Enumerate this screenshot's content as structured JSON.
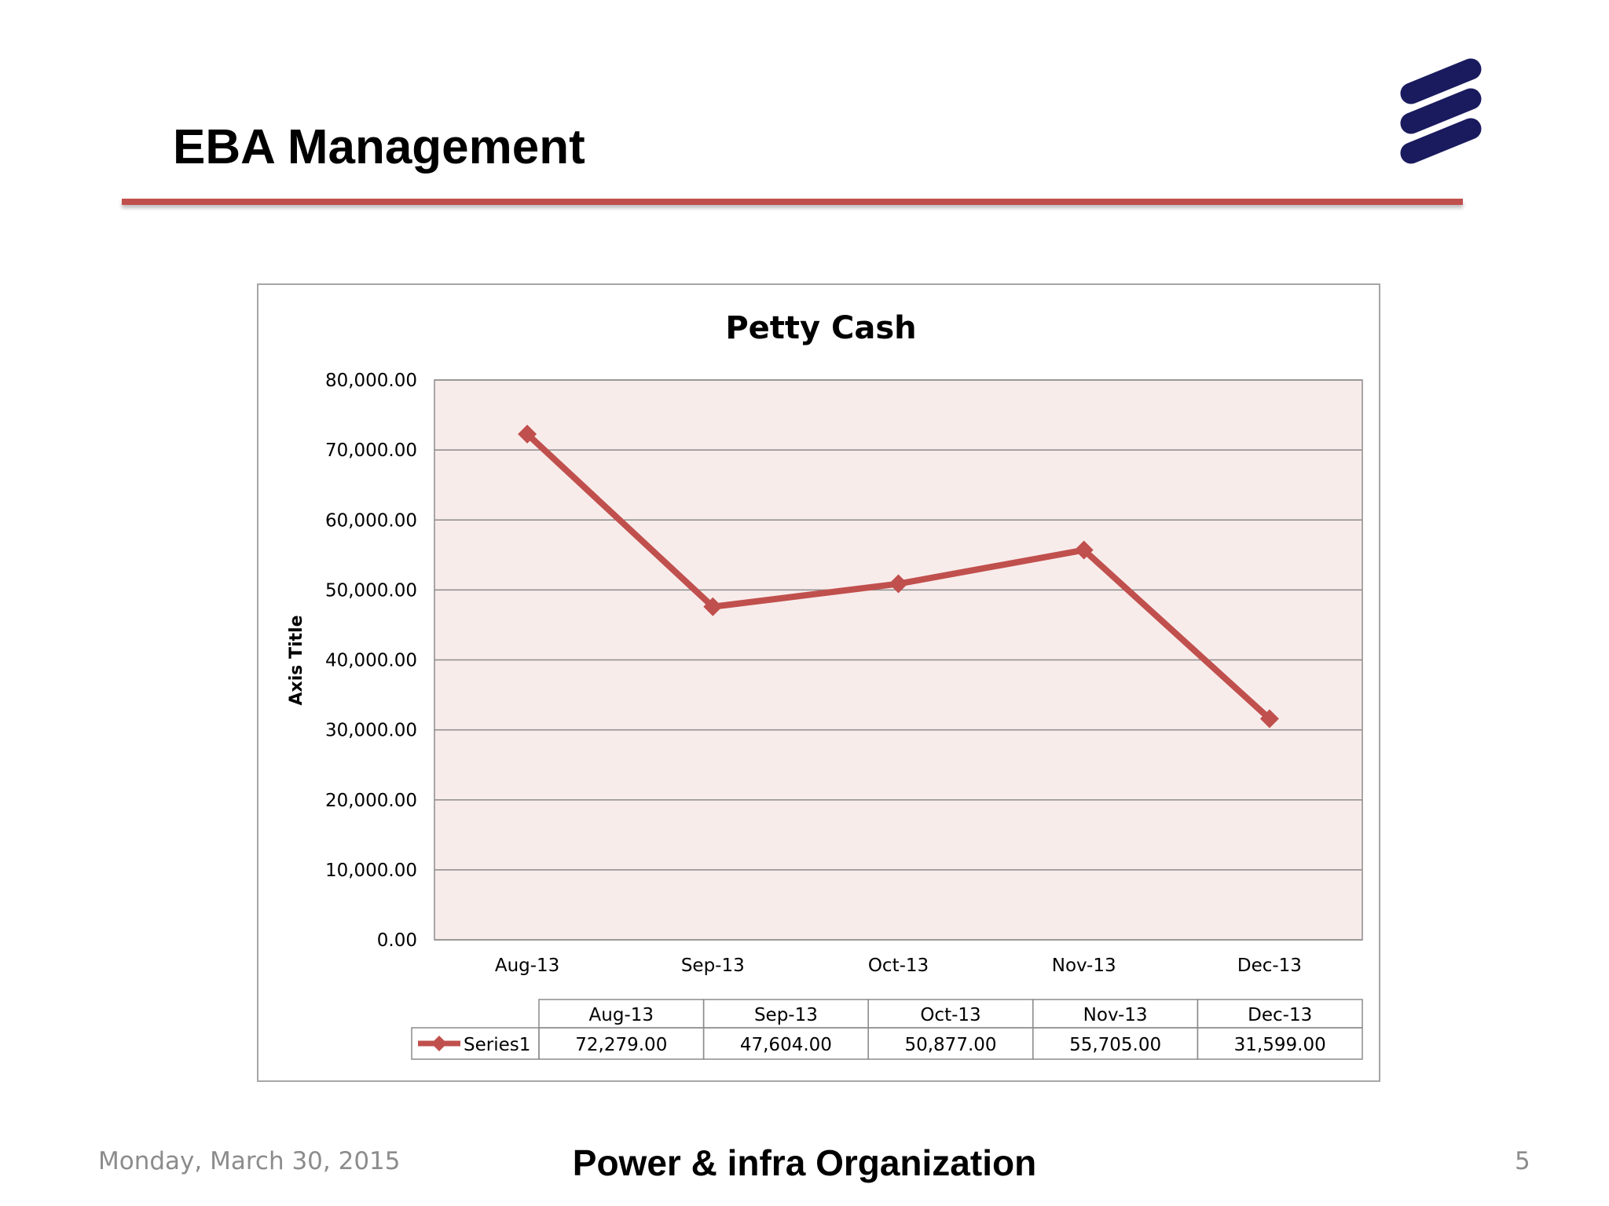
{
  "slide": {
    "title": "EBA Management",
    "footer_date": "Monday, March 30, 2015",
    "footer_center": "Power & infra Organization",
    "page_number": "5",
    "logo_icon": "ericsson-logo-icon"
  },
  "colors": {
    "accent_red": "#c0504d",
    "plot_bg": "#f2dcdb",
    "logo_navy": "#1a1a5e",
    "grid": "#8c8c8c"
  },
  "chart_data": {
    "type": "line",
    "title": "Petty Cash",
    "ylabel": "Axis Title",
    "xlabel": "",
    "categories": [
      "Aug-13",
      "Sep-13",
      "Oct-13",
      "Nov-13",
      "Dec-13"
    ],
    "series": [
      {
        "name": "Series1",
        "values": [
          72279.0,
          47604.0,
          50877.0,
          55705.0,
          31599.0
        ],
        "marker": "diamond",
        "color": "#c0504d"
      }
    ],
    "ylim": [
      0,
      80000
    ],
    "yticks": [
      0,
      10000,
      20000,
      30000,
      40000,
      50000,
      60000,
      70000,
      80000
    ],
    "ytick_labels": [
      "0.00",
      "10,000.00",
      "20,000.00",
      "30,000.00",
      "40,000.00",
      "50,000.00",
      "60,000.00",
      "70,000.00",
      "80,000.00"
    ],
    "grid": true,
    "data_table": {
      "headers": [
        "Aug-13",
        "Sep-13",
        "Oct-13",
        "Nov-13",
        "Dec-13"
      ],
      "row_label": "Series1",
      "cells": [
        "72,279.00",
        "47,604.00",
        "50,877.00",
        "55,705.00",
        "31,599.00"
      ]
    }
  }
}
